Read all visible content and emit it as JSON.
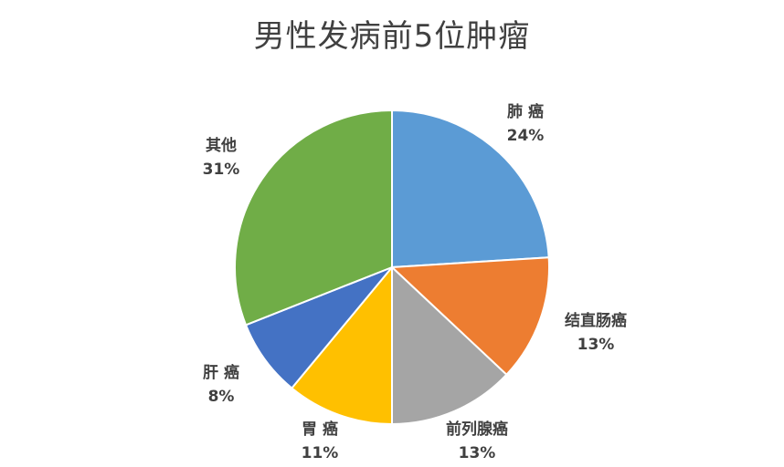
{
  "chart_data": {
    "type": "pie",
    "title": "男性发病前5位肿瘤",
    "slices": [
      {
        "name": "肺 癌",
        "value": 24,
        "label": "24%",
        "color": "#5B9BD5"
      },
      {
        "name": "结直肠癌",
        "value": 13,
        "label": "13%",
        "color": "#ED7D31"
      },
      {
        "name": "前列腺癌",
        "value": 13,
        "label": "13%",
        "color": "#A5A5A5"
      },
      {
        "name": "胃 癌",
        "value": 11,
        "label": "11%",
        "color": "#FFC000"
      },
      {
        "name": "肝 癌",
        "value": 8,
        "label": "8%",
        "color": "#4472C4"
      },
      {
        "name": "其他",
        "value": 31,
        "label": "31%",
        "color": "#70AD47"
      }
    ]
  }
}
